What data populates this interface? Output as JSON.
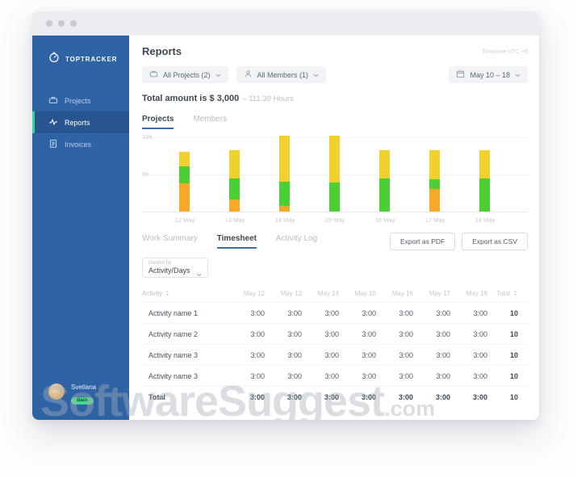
{
  "sidebar": {
    "brand": "TOPTRACKER",
    "items": [
      {
        "label": "Projects",
        "icon": "briefcase-icon",
        "active": false
      },
      {
        "label": "Reports",
        "icon": "pulse-icon",
        "active": true
      },
      {
        "label": "Invoices",
        "icon": "invoice-icon",
        "active": false
      }
    ],
    "user": {
      "name": "Svetlana",
      "badge": "Back"
    },
    "colors": {
      "bg": "#2e63a6",
      "active_bg": "#285590",
      "accent": "#2ed8a3"
    }
  },
  "header": {
    "title": "Reports",
    "timezone_note": "Timezone UTC +0",
    "project_filter": "All Projects (2)",
    "member_filter": "All Members (1)",
    "date_range": "May 10 – 18",
    "total_amount": "Total amount is $ 3,000",
    "total_hours": "– 111.30 Hours"
  },
  "chart_tabs": [
    {
      "label": "Projects",
      "active": true
    },
    {
      "label": "Members",
      "active": false
    }
  ],
  "chart_data": {
    "type": "bar",
    "stacked": true,
    "categories": [
      "12 May",
      "13 May",
      "14 May",
      "15 May",
      "16 May",
      "17 May",
      "18 May"
    ],
    "series": [
      {
        "name": "series-orange",
        "color": "#F5A926",
        "values": [
          3.8,
          1.6,
          0.8,
          0,
          0,
          3.0,
          0
        ]
      },
      {
        "name": "series-green",
        "color": "#4CCF35",
        "values": [
          2.3,
          2.9,
          3.2,
          3.9,
          4.5,
          1.3,
          4.5
        ]
      },
      {
        "name": "series-yellow",
        "color": "#F0D12D",
        "values": [
          2.0,
          3.8,
          6.2,
          6.3,
          3.8,
          4.0,
          3.8
        ]
      }
    ],
    "y_ticks": [
      {
        "label": "10h",
        "value": 10
      },
      {
        "label": "5h",
        "value": 5
      }
    ],
    "ylim": [
      0,
      11
    ],
    "grid": true,
    "legend": false,
    "xlabel": "",
    "ylabel": ""
  },
  "table_section": {
    "tabs": [
      {
        "label": "Work Summary",
        "active": false
      },
      {
        "label": "Timesheet",
        "active": true
      },
      {
        "label": "Activity Log",
        "active": false
      }
    ],
    "export_pdf": "Export as PDF",
    "export_csv": "Export as CSV",
    "divided_by_label": "Divided by",
    "divided_by_value": "Activity/Days"
  },
  "table": {
    "activity_header": "Activity",
    "day_headers": [
      "May 12",
      "May 13",
      "May 14",
      "May 15",
      "May 16",
      "May 17",
      "May 18"
    ],
    "total_header": "Total",
    "rows": [
      {
        "name": "Activity name 1",
        "values": [
          "3:00",
          "3:00",
          "3:00",
          "3:00",
          "3:00",
          "3:00",
          "3:00"
        ],
        "total": "10"
      },
      {
        "name": "Activity name 2",
        "values": [
          "3:00",
          "3:00",
          "3:00",
          "3:00",
          "3:00",
          "3:00",
          "3:00"
        ],
        "total": "10"
      },
      {
        "name": "Activity name 3",
        "values": [
          "3:00",
          "3:00",
          "3:00",
          "3:00",
          "3:00",
          "3:00",
          "3:00"
        ],
        "total": "10"
      },
      {
        "name": "Activity name 3",
        "values": [
          "3:00",
          "3:00",
          "3:00",
          "3:00",
          "3:00",
          "3:00",
          "3:00"
        ],
        "total": "10"
      }
    ],
    "total_row": {
      "name": "Total",
      "values": [
        "3:00",
        "3:00",
        "3:00",
        "3:00",
        "3:00",
        "3:00",
        "3:00"
      ],
      "total": "10"
    }
  },
  "watermark": {
    "text": "SoftwareSuggest",
    "suffix": ".com"
  }
}
